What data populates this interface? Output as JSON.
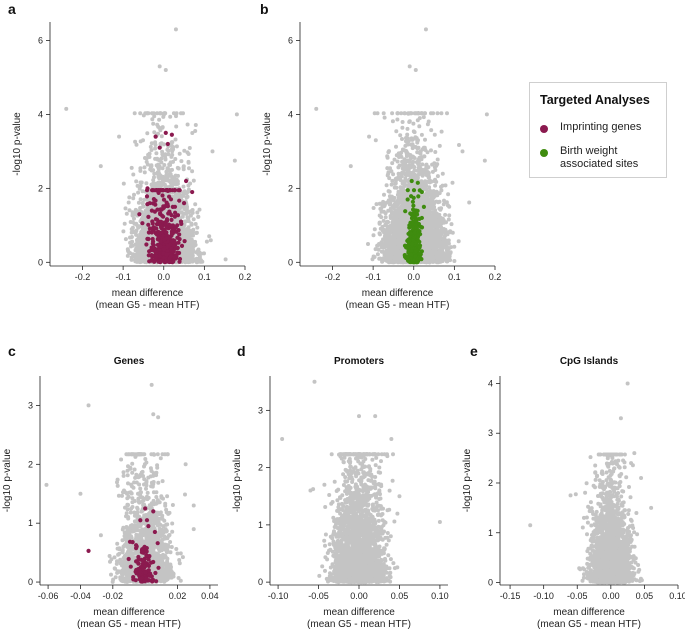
{
  "colors": {
    "background_points": "#c4c4c4",
    "imprinting": "#8b1a4f",
    "birth_weight": "#3f8c0f",
    "axis": "#222222"
  },
  "legend": {
    "title": "Targeted Analyses",
    "items": [
      {
        "label_line1": "Imprinting genes",
        "label_line2": "",
        "color": "#8b1a4f"
      },
      {
        "label_line1": "Birth weight",
        "label_line2": "associated sites",
        "color": "#3f8c0f"
      }
    ]
  },
  "chart_data": [
    {
      "panel_label": "a",
      "type": "scatter",
      "title": "",
      "xlabel_line1": "mean difference",
      "xlabel_line2": "(mean G5 - mean HTF)",
      "ylabel": "-log10 p-value",
      "xlim": [
        -0.28,
        0.2
      ],
      "ylim": [
        -0.1,
        6.5
      ],
      "xticks": [
        -0.2,
        -0.1,
        0.0,
        0.1,
        0.2
      ],
      "yticks": [
        0,
        2,
        4,
        6
      ],
      "xtick_labels": [
        "-0.2",
        "-0.1",
        "0.0",
        "0.1",
        "0.2"
      ],
      "ytick_labels": [
        "0",
        "2",
        "4",
        "6"
      ],
      "background_cloud": {
        "n": 3200,
        "x_sd": 0.033,
        "y_scale": 0.75,
        "seed": 11
      },
      "background_outliers": [
        [
          -0.24,
          4.15
        ],
        [
          0.03,
          6.3
        ],
        [
          -0.01,
          5.3
        ],
        [
          0.005,
          5.2
        ],
        [
          0.18,
          4.0
        ],
        [
          0.175,
          2.75
        ],
        [
          -0.155,
          2.6
        ],
        [
          -0.11,
          3.4
        ],
        [
          0.12,
          3.0
        ]
      ],
      "highlight": {
        "series": "Imprinting genes",
        "color": "#8b1a4f",
        "n": 420,
        "x_sd": 0.018,
        "y_scale": 0.7,
        "seed": 5
      },
      "highlight_outliers": [
        [
          -0.02,
          3.4
        ],
        [
          0.02,
          3.45
        ],
        [
          0.005,
          3.5
        ],
        [
          -0.01,
          3.1
        ],
        [
          0.01,
          3.2
        ],
        [
          0.055,
          2.2
        ],
        [
          0.07,
          1.9
        ],
        [
          0.05,
          1.6
        ],
        [
          -0.04,
          2.0
        ],
        [
          -0.06,
          1.3
        ]
      ]
    },
    {
      "panel_label": "b",
      "type": "scatter",
      "title": "",
      "xlabel_line1": "mean difference",
      "xlabel_line2": "(mean G5 - mean HTF)",
      "ylabel": "-log10 p-value",
      "xlim": [
        -0.28,
        0.2
      ],
      "ylim": [
        -0.1,
        6.5
      ],
      "xticks": [
        -0.2,
        -0.1,
        0.0,
        0.1,
        0.2
      ],
      "yticks": [
        0,
        2,
        4,
        6
      ],
      "xtick_labels": [
        "-0.2",
        "-0.1",
        "0.0",
        "0.1",
        "0.2"
      ],
      "ytick_labels": [
        "0",
        "2",
        "4",
        "6"
      ],
      "background_cloud": {
        "n": 4200,
        "x_sd": 0.033,
        "y_scale": 0.8,
        "seed": 23
      },
      "background_outliers": [
        [
          -0.24,
          4.15
        ],
        [
          0.03,
          6.3
        ],
        [
          -0.01,
          5.3
        ],
        [
          0.005,
          5.2
        ],
        [
          0.18,
          4.0
        ],
        [
          0.175,
          2.75
        ],
        [
          -0.155,
          2.6
        ],
        [
          -0.11,
          3.4
        ],
        [
          0.12,
          3.0
        ]
      ],
      "highlight": {
        "series": "Birth weight associated sites",
        "color": "#3f8c0f",
        "n": 320,
        "x_sd": 0.008,
        "y_scale": 0.45,
        "seed": 9
      },
      "highlight_outliers": [
        [
          -0.005,
          2.2
        ],
        [
          0.01,
          2.15
        ],
        [
          0.02,
          1.9
        ],
        [
          -0.015,
          1.7
        ],
        [
          0.025,
          1.5
        ],
        [
          0.02,
          1.2
        ]
      ]
    },
    {
      "panel_label": "c",
      "type": "scatter",
      "title": "Genes",
      "xlabel_line1": "mean difference",
      "xlabel_line2": "(mean G5 - mean HTF)",
      "ylabel": "-log10 p-value",
      "xlim": [
        -0.065,
        0.045
      ],
      "ylim": [
        -0.05,
        3.5
      ],
      "xticks": [
        -0.06,
        -0.04,
        -0.02,
        0.02,
        0.04
      ],
      "yticks": [
        0,
        1,
        2,
        3
      ],
      "xtick_labels": [
        "-0.06",
        "-0.04",
        "-0.02",
        "0.02",
        "0.04"
      ],
      "ytick_labels": [
        "0",
        "1",
        "2",
        "3"
      ],
      "background_cloud": {
        "n": 1500,
        "x_sd": 0.0075,
        "y_scale": 0.55,
        "seed": 31
      },
      "background_outliers": [
        [
          -0.061,
          1.65
        ],
        [
          -0.035,
          3.0
        ],
        [
          0.004,
          3.35
        ],
        [
          0.005,
          2.85
        ],
        [
          0.008,
          2.8
        ],
        [
          0.03,
          1.3
        ],
        [
          -0.04,
          1.5
        ],
        [
          0.025,
          2.0
        ],
        [
          0.03,
          0.9
        ]
      ],
      "highlight": {
        "series": "Imprinting genes",
        "color": "#8b1a4f",
        "n": 95,
        "x_sd": 0.0035,
        "y_scale": 0.28,
        "seed": 3
      },
      "highlight_outliers": [
        [
          -0.035,
          0.53
        ],
        [
          0.0,
          1.25
        ],
        [
          0.005,
          1.2
        ],
        [
          -0.003,
          1.05
        ],
        [
          0.002,
          0.95
        ],
        [
          0.006,
          0.85
        ]
      ]
    },
    {
      "panel_label": "d",
      "type": "scatter",
      "title": "Promoters",
      "xlabel_line1": "mean difference",
      "xlabel_line2": "(mean G5 - mean HTF)",
      "ylabel": "-log10 p-value",
      "xlim": [
        -0.11,
        0.11
      ],
      "ylim": [
        -0.05,
        3.6
      ],
      "xticks": [
        -0.1,
        -0.05,
        0.0,
        0.05,
        0.1
      ],
      "yticks": [
        0,
        1,
        2,
        3
      ],
      "xtick_labels": [
        "-0.10",
        "-0.05",
        "0.00",
        "0.05",
        "0.10"
      ],
      "ytick_labels": [
        "0",
        "1",
        "2",
        "3"
      ],
      "background_cloud": {
        "n": 2600,
        "x_sd": 0.015,
        "y_scale": 0.6,
        "seed": 41
      },
      "background_outliers": [
        [
          -0.095,
          2.5
        ],
        [
          -0.055,
          3.5
        ],
        [
          0.0,
          2.9
        ],
        [
          0.02,
          2.9
        ],
        [
          0.1,
          1.05
        ],
        [
          0.04,
          2.5
        ],
        [
          -0.06,
          1.6
        ],
        [
          0.035,
          2.2
        ],
        [
          0.05,
          1.5
        ]
      ]
    },
    {
      "panel_label": "e",
      "type": "scatter",
      "title": "CpG Islands",
      "xlabel_line1": "mean difference",
      "xlabel_line2": "(mean G5 - mean HTF)",
      "ylabel": "-log10 p-value",
      "xlim": [
        -0.165,
        0.1
      ],
      "ylim": [
        -0.05,
        4.15
      ],
      "xticks": [
        -0.15,
        -0.1,
        -0.05,
        0.0,
        0.05,
        0.1
      ],
      "yticks": [
        0,
        1,
        2,
        3,
        4
      ],
      "xtick_labels": [
        "-0.15",
        "-0.10",
        "-0.05",
        "0.00",
        "0.05",
        "0.10"
      ],
      "ytick_labels": [
        "0",
        "1",
        "2",
        "3",
        "4"
      ],
      "background_cloud": {
        "n": 2400,
        "x_sd": 0.014,
        "y_scale": 0.6,
        "seed": 53
      },
      "background_outliers": [
        [
          -0.12,
          1.15
        ],
        [
          0.025,
          4.0
        ],
        [
          0.015,
          3.3
        ],
        [
          0.06,
          1.5
        ],
        [
          -0.06,
          1.75
        ],
        [
          0.035,
          2.6
        ],
        [
          -0.04,
          1.3
        ],
        [
          0.045,
          2.1
        ]
      ]
    }
  ]
}
